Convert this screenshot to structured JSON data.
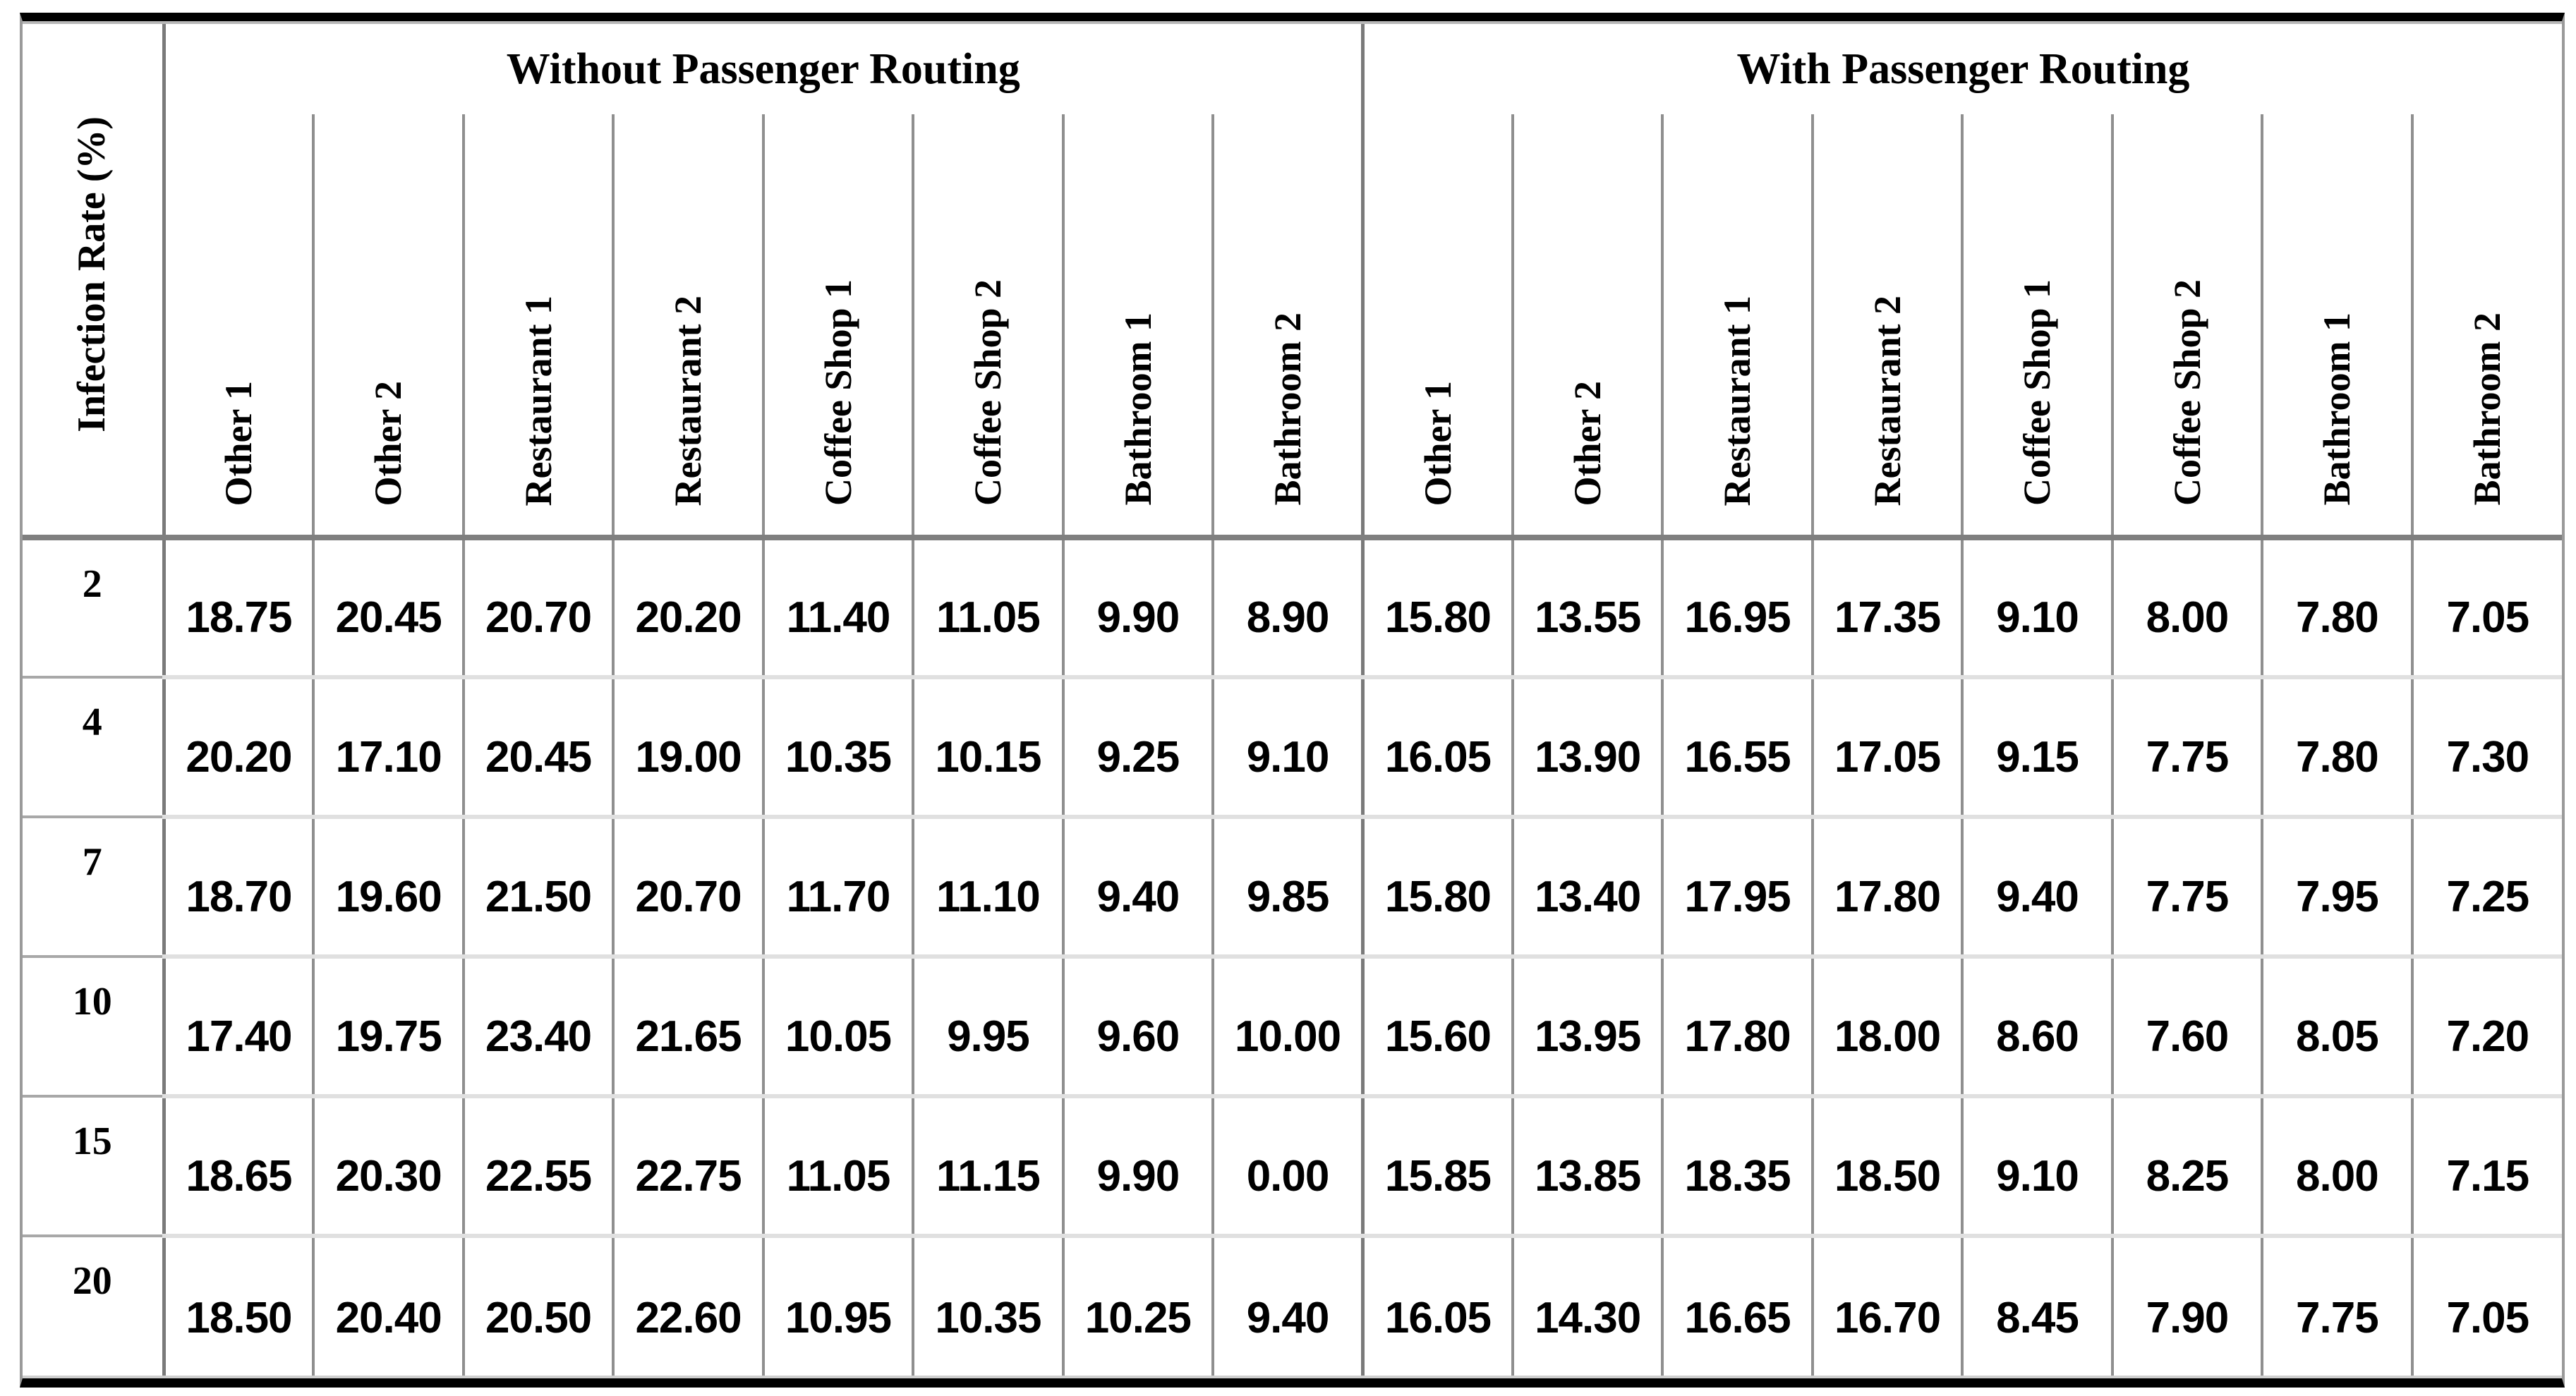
{
  "table": {
    "row_header_label": "Infection Rate (%)",
    "groups": [
      {
        "label": "Without Passenger Routing",
        "columns": [
          "Other 1",
          "Other 2",
          "Restaurant 1",
          "Restaurant 2",
          "Coffee Shop 1",
          "Coffee Shop 2",
          "Bathroom 1",
          "Bathroom 2"
        ]
      },
      {
        "label": "With Passenger Routing",
        "columns": [
          "Other 1",
          "Other 2",
          "Restaurant 1",
          "Restaurant 2",
          "Coffee Shop 1",
          "Coffee Shop 2",
          "Bathroom 1",
          "Bathroom 2"
        ]
      }
    ],
    "rows": [
      {
        "infection_rate": "2",
        "without": [
          "18.75",
          "20.45",
          "20.70",
          "20.20",
          "11.40",
          "11.05",
          "9.90",
          "8.90"
        ],
        "with": [
          "15.80",
          "13.55",
          "16.95",
          "17.35",
          "9.10",
          "8.00",
          "7.80",
          "7.05"
        ]
      },
      {
        "infection_rate": "4",
        "without": [
          "20.20",
          "17.10",
          "20.45",
          "19.00",
          "10.35",
          "10.15",
          "9.25",
          "9.10"
        ],
        "with": [
          "16.05",
          "13.90",
          "16.55",
          "17.05",
          "9.15",
          "7.75",
          "7.80",
          "7.30"
        ]
      },
      {
        "infection_rate": "7",
        "without": [
          "18.70",
          "19.60",
          "21.50",
          "20.70",
          "11.70",
          "11.10",
          "9.40",
          "9.85"
        ],
        "with": [
          "15.80",
          "13.40",
          "17.95",
          "17.80",
          "9.40",
          "7.75",
          "7.95",
          "7.25"
        ]
      },
      {
        "infection_rate": "10",
        "without": [
          "17.40",
          "19.75",
          "23.40",
          "21.65",
          "10.05",
          "9.95",
          "9.60",
          "10.00"
        ],
        "with": [
          "15.60",
          "13.95",
          "17.80",
          "18.00",
          "8.60",
          "7.60",
          "8.05",
          "7.20"
        ]
      },
      {
        "infection_rate": "15",
        "without": [
          "18.65",
          "20.30",
          "22.55",
          "22.75",
          "11.05",
          "11.15",
          "9.90",
          "0.00"
        ],
        "with": [
          "15.85",
          "13.85",
          "18.35",
          "18.50",
          "9.10",
          "8.25",
          "8.00",
          "7.15"
        ]
      },
      {
        "infection_rate": "20",
        "without": [
          "18.50",
          "20.40",
          "20.50",
          "22.60",
          "10.95",
          "10.35",
          "10.25",
          "9.40"
        ],
        "with": [
          "16.05",
          "14.30",
          "16.65",
          "16.70",
          "8.45",
          "7.90",
          "7.75",
          "7.05"
        ]
      }
    ]
  }
}
